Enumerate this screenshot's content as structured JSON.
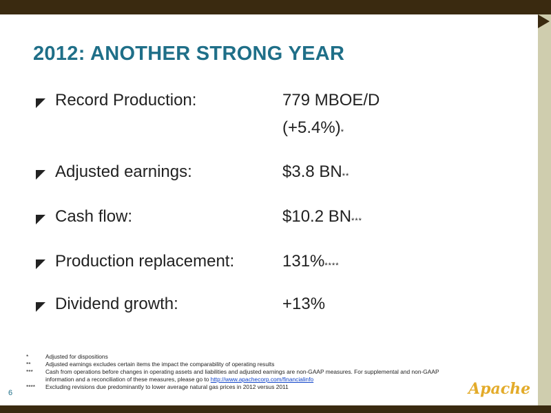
{
  "slide": {
    "title": "2012: ANOTHER STRONG YEAR",
    "page_number": "6",
    "logo_text": "Apache"
  },
  "bullets": [
    {
      "label": "Record Production:",
      "value": "779 MBOE/D",
      "value_line2": "(+5.4%)",
      "mark": "*"
    },
    {
      "label": "Adjusted earnings:",
      "value": "$3.8 BN",
      "mark": "**"
    },
    {
      "label": "Cash flow:",
      "value": "$10.2 BN",
      "mark": "***"
    },
    {
      "label": "Production replacement:",
      "value": "131%",
      "mark": "****"
    },
    {
      "label": "Dividend growth:",
      "value": "+13%",
      "mark": ""
    }
  ],
  "footnotes": [
    {
      "mark": "*",
      "text": "Adjusted for dispositions"
    },
    {
      "mark": "**",
      "text": "Adjusted earnings excludes certain items the impact the comparability of operating results"
    },
    {
      "mark": "***",
      "text": "Cash from operations before changes in operating assets and liabilities and adjusted earnings are non-GAAP measures. For supplemental and non-GAAP information and a reconciliation of these measures, please go to",
      "link": "http://www.apachecorp.com/financialinfo"
    },
    {
      "mark": "****",
      "text": "Excluding revisions due predominantly to lower average natural gas prices in 2012 versus 2011"
    }
  ],
  "colors": {
    "title": "#1f6f88",
    "bars": "#3a2a10",
    "side_band": "#cfcdae",
    "logo": "#e3ab2a"
  }
}
